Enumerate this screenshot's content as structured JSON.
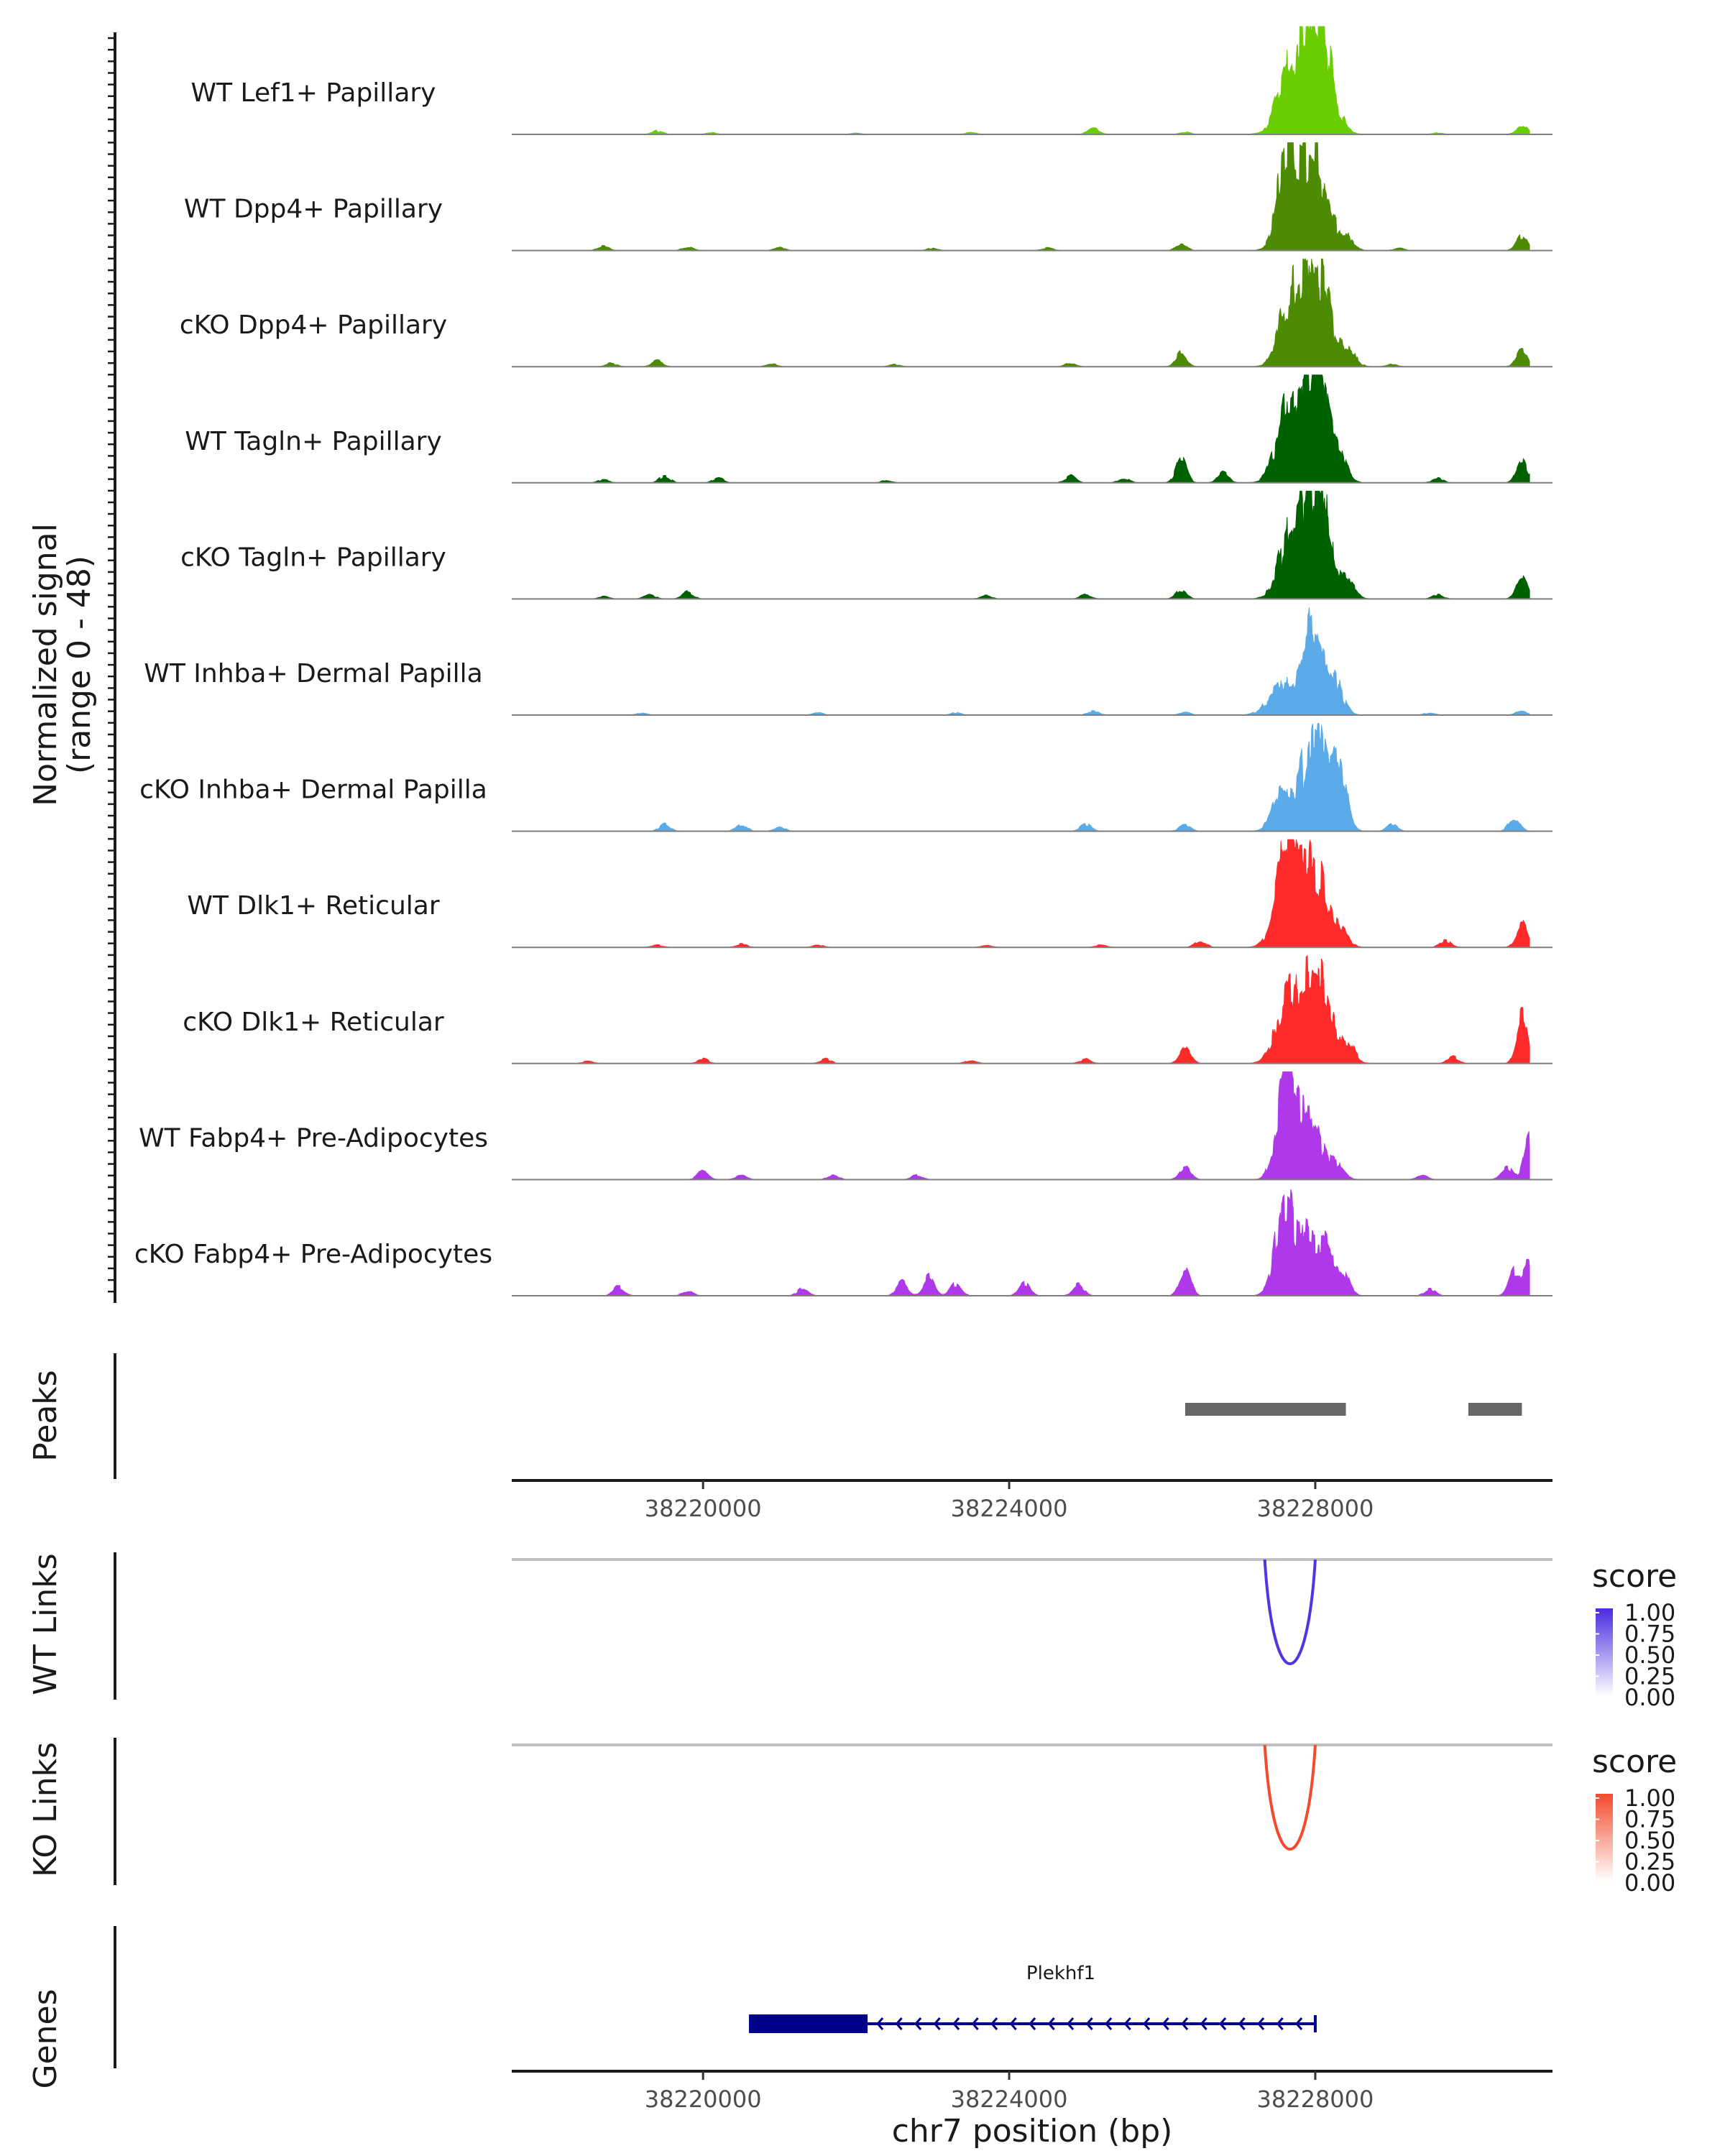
{
  "chart_data": {
    "type": "area",
    "title": "",
    "xlabel": "chr7 position (bp)",
    "xlim": [
      38217500,
      38231100
    ],
    "x_ticks": [
      38220000,
      38224000,
      38228000
    ],
    "x_tick_labels": [
      "38220000",
      "38224000",
      "38228000"
    ],
    "coverage": {
      "ylabel": "Normalized signal",
      "ylabel_range": "(range 0 - 48)",
      "ylim": [
        0,
        48
      ],
      "tracks": [
        {
          "name": "WT Lef1+ Papillary",
          "color": "#6ACD00",
          "background": [
            [
              38219400,
              1.5
            ],
            [
              38220100,
              0.8
            ],
            [
              38222000,
              0.6
            ],
            [
              38223500,
              0.8
            ],
            [
              38225100,
              3.0
            ],
            [
              38226300,
              1.0
            ],
            [
              38229600,
              0.6
            ],
            [
              38230700,
              4.0
            ]
          ],
          "peaks": [
            [
              38227700,
              30,
              170
            ],
            [
              38227920,
              18,
              90
            ],
            [
              38228060,
              43,
              160
            ]
          ]
        },
        {
          "name": "WT Dpp4+ Papillary",
          "color": "#4C8B02",
          "background": [
            [
              38218700,
              2.0
            ],
            [
              38219800,
              1.5
            ],
            [
              38221000,
              1.2
            ],
            [
              38223000,
              1.0
            ],
            [
              38224500,
              1.2
            ],
            [
              38226250,
              3.0
            ],
            [
              38229100,
              1.0
            ],
            [
              38230700,
              6.0
            ]
          ],
          "peaks": [
            [
              38227650,
              44,
              130
            ],
            [
              38227850,
              12,
              90
            ],
            [
              38228020,
              34,
              150
            ],
            [
              38228400,
              6,
              90
            ]
          ]
        },
        {
          "name": "cKO Dpp4+ Papillary",
          "color": "#4C8B02",
          "background": [
            [
              38218800,
              1.5
            ],
            [
              38219400,
              3.0
            ],
            [
              38220900,
              1.2
            ],
            [
              38222500,
              1.0
            ],
            [
              38224800,
              1.5
            ],
            [
              38226250,
              6.0
            ],
            [
              38229000,
              1.0
            ],
            [
              38230700,
              8.0
            ]
          ],
          "peaks": [
            [
              38227680,
              30,
              140
            ],
            [
              38227880,
              10,
              90
            ],
            [
              38228050,
              40,
              160
            ],
            [
              38228450,
              6,
              90
            ]
          ]
        },
        {
          "name": "WT Tagln+ Papillary",
          "color": "#006100",
          "background": [
            [
              38218700,
              1.5
            ],
            [
              38219500,
              3.0
            ],
            [
              38220200,
              2.0
            ],
            [
              38222400,
              1.0
            ],
            [
              38224800,
              3.0
            ],
            [
              38225500,
              2.0
            ],
            [
              38226250,
              10.0
            ],
            [
              38226800,
              5.0
            ],
            [
              38229600,
              2.0
            ],
            [
              38230700,
              10.0
            ]
          ],
          "peaks": [
            [
              38227650,
              32,
              150
            ],
            [
              38227850,
              16,
              90
            ],
            [
              38228060,
              48,
              140
            ],
            [
              38228350,
              8,
              90
            ]
          ]
        },
        {
          "name": "cKO Tagln+ Papillary",
          "color": "#006100",
          "background": [
            [
              38218700,
              1.0
            ],
            [
              38219300,
              2.0
            ],
            [
              38219800,
              3.0
            ],
            [
              38223700,
              1.5
            ],
            [
              38225000,
              2.0
            ],
            [
              38226250,
              4.0
            ],
            [
              38229600,
              2.0
            ],
            [
              38230700,
              10.0
            ]
          ],
          "peaks": [
            [
              38227680,
              27,
              150
            ],
            [
              38227900,
              12,
              90
            ],
            [
              38228050,
              44,
              160
            ],
            [
              38228450,
              6,
              90
            ]
          ]
        },
        {
          "name": "WT Inhba+ Dermal Papilla",
          "color": "#5AABE8",
          "background": [
            [
              38219200,
              1.0
            ],
            [
              38221500,
              1.0
            ],
            [
              38223300,
              1.0
            ],
            [
              38225100,
              2.0
            ],
            [
              38226300,
              1.5
            ],
            [
              38229500,
              1.0
            ],
            [
              38230700,
              2.0
            ]
          ],
          "peaks": [
            [
              38227600,
              14,
              180
            ],
            [
              38227850,
              10,
              90
            ],
            [
              38228000,
              36,
              130
            ],
            [
              38228250,
              12,
              110
            ]
          ]
        },
        {
          "name": "cKO Inhba+ Dermal Papilla",
          "color": "#5AABE8",
          "background": [
            [
              38219500,
              3.0
            ],
            [
              38220500,
              3.0
            ],
            [
              38221000,
              2.0
            ],
            [
              38225000,
              3.0
            ],
            [
              38226300,
              3.0
            ],
            [
              38229000,
              3.0
            ],
            [
              38230600,
              6.0
            ]
          ],
          "peaks": [
            [
              38227550,
              22,
              110
            ],
            [
              38227800,
              12,
              90
            ],
            [
              38228000,
              48,
              110
            ],
            [
              38228300,
              28,
              100
            ]
          ]
        },
        {
          "name": "WT Dlk1+ Reticular",
          "color": "#FF2B2B",
          "background": [
            [
              38219400,
              1.0
            ],
            [
              38220500,
              1.5
            ],
            [
              38221500,
              1.0
            ],
            [
              38223700,
              1.0
            ],
            [
              38225200,
              1.0
            ],
            [
              38226500,
              3.0
            ],
            [
              38229700,
              3.0
            ],
            [
              38230700,
              11.0
            ]
          ],
          "peaks": [
            [
              38227620,
              42,
              140
            ],
            [
              38227850,
              12,
              90
            ],
            [
              38228000,
              32,
              160
            ],
            [
              38228350,
              6,
              90
            ]
          ]
        },
        {
          "name": "cKO Dlk1+ Reticular",
          "color": "#FF2B2B",
          "background": [
            [
              38218500,
              1.0
            ],
            [
              38220000,
              2.0
            ],
            [
              38221600,
              2.0
            ],
            [
              38223500,
              1.5
            ],
            [
              38225000,
              2.0
            ],
            [
              38226300,
              8.0
            ],
            [
              38229800,
              3.0
            ],
            [
              38230700,
              20.0
            ]
          ],
          "peaks": [
            [
              38227650,
              29,
              150
            ],
            [
              38227880,
              10,
              90
            ],
            [
              38228050,
              34,
              160
            ],
            [
              38228450,
              6,
              90
            ]
          ]
        },
        {
          "name": "WT Fabp4+ Pre-Adipocytes",
          "color": "#AF38EA",
          "background": [
            [
              38220000,
              4.0
            ],
            [
              38220500,
              2.0
            ],
            [
              38221700,
              2.0
            ],
            [
              38222800,
              2.0
            ],
            [
              38226300,
              6.0
            ],
            [
              38229400,
              2.0
            ],
            [
              38230500,
              6.0
            ],
            [
              38230800,
              18.0
            ]
          ],
          "peaks": [
            [
              38227600,
              47,
              110
            ],
            [
              38227780,
              12,
              80
            ],
            [
              38227950,
              24,
              150
            ],
            [
              38228300,
              6,
              90
            ]
          ]
        },
        {
          "name": "cKO Fabp4+ Pre-Adipocytes",
          "color": "#AF38EA",
          "background": [
            [
              38218900,
              4.0
            ],
            [
              38219800,
              2.0
            ],
            [
              38221300,
              3.0
            ],
            [
              38222600,
              6.0
            ],
            [
              38222950,
              8.0
            ],
            [
              38223300,
              5.0
            ],
            [
              38224200,
              6.0
            ],
            [
              38224900,
              5.0
            ],
            [
              38226300,
              12.0
            ],
            [
              38229500,
              3.0
            ],
            [
              38230600,
              10.0
            ],
            [
              38230780,
              15.0
            ]
          ],
          "peaks": [
            [
              38227600,
              40,
              120
            ],
            [
              38227850,
              18,
              90
            ],
            [
              38228080,
              24,
              140
            ],
            [
              38228350,
              8,
              90
            ]
          ]
        }
      ]
    },
    "peaks_track": {
      "label": "Peaks",
      "regions": [
        [
          38226300,
          38228400
        ],
        [
          38230000,
          38230700
        ]
      ]
    },
    "links": {
      "legend_title": "score",
      "legend_ticks": [
        "1.00",
        "0.75",
        "0.50",
        "0.25",
        "0.00"
      ],
      "tracks": [
        {
          "name": "WT Links",
          "color": "#5533E0",
          "legend_color": "#4B2BE0",
          "arcs": [
            {
              "start": 38227340,
              "end": 38228000,
              "score": 0.85
            }
          ]
        },
        {
          "name": "KO Links",
          "color": "#F24B2E",
          "legend_color": "#F24B2E",
          "arcs": [
            {
              "start": 38227340,
              "end": 38228000,
              "score": 0.85
            }
          ]
        }
      ]
    },
    "genes": {
      "label": "Genes",
      "items": [
        {
          "name": "Plekhf1",
          "start": 38220600,
          "end": 38228000,
          "strand": "-",
          "exons": [
            [
              38220600,
              38222150
            ]
          ],
          "color": "#00008B"
        }
      ]
    }
  }
}
